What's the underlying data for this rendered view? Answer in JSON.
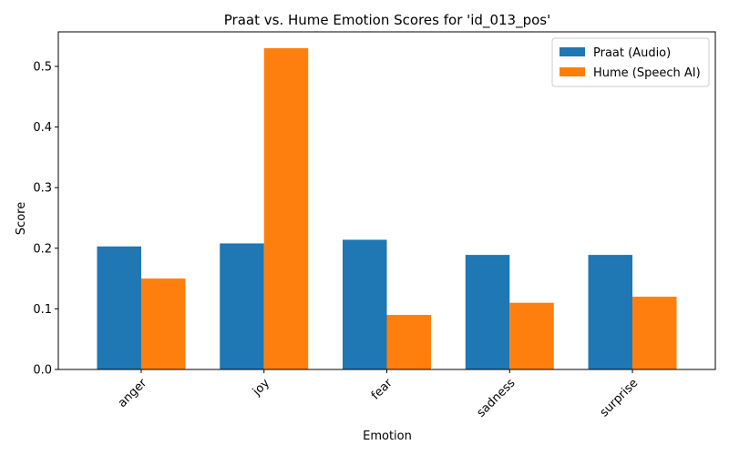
{
  "chart_data": {
    "type": "bar",
    "title": "Praat vs. Hume Emotion Scores for 'id_013_pos'",
    "xlabel": "Emotion",
    "ylabel": "Score",
    "categories": [
      "anger",
      "joy",
      "fear",
      "sadness",
      "surprise"
    ],
    "series": [
      {
        "name": "Praat (Audio)",
        "color": "#1f77b4",
        "values": [
          0.203,
          0.208,
          0.214,
          0.189,
          0.189
        ]
      },
      {
        "name": "Hume (Speech AI)",
        "color": "#ff7f0e",
        "values": [
          0.15,
          0.53,
          0.09,
          0.11,
          0.12
        ]
      }
    ],
    "ylim": [
      0,
      0.557
    ],
    "yticks": [
      0.0,
      0.1,
      0.2,
      0.3,
      0.4,
      0.5
    ],
    "ytick_labels": [
      "0.0",
      "0.1",
      "0.2",
      "0.3",
      "0.4",
      "0.5"
    ],
    "grid": false,
    "legend_position": "top-right",
    "xtick_rotation": 45
  }
}
